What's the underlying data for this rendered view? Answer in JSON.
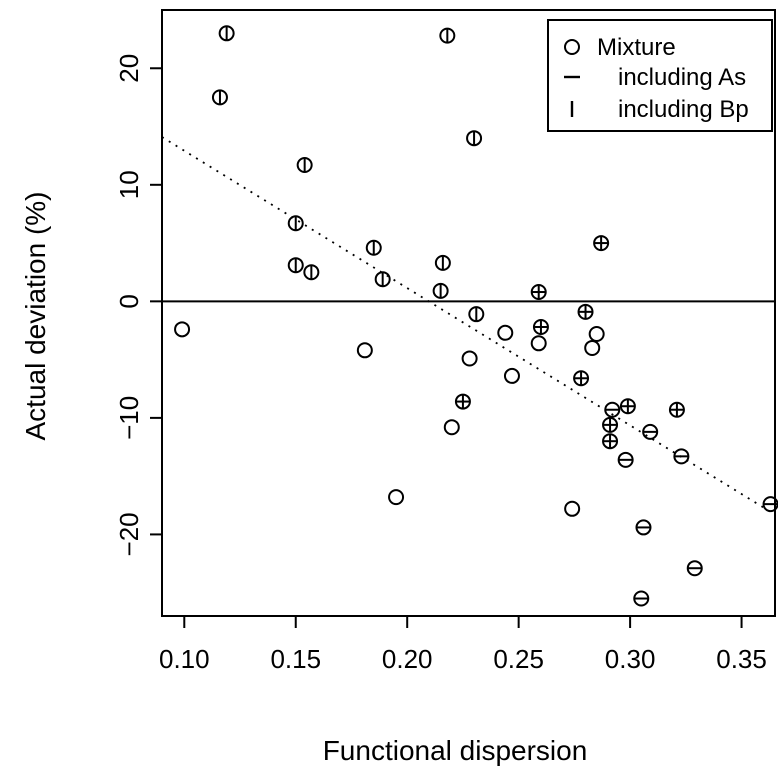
{
  "chart_data": {
    "type": "scatter",
    "xlabel": "Functional dispersion",
    "ylabel": "Actual deviation (%)",
    "xlim": [
      0.09,
      0.365
    ],
    "ylim": [
      -27,
      25
    ],
    "x_ticks": [
      "0.10",
      "0.15",
      "0.20",
      "0.25",
      "0.30",
      "0.35"
    ],
    "x_tick_values": [
      0.1,
      0.15,
      0.2,
      0.25,
      0.3,
      0.35
    ],
    "y_ticks": [
      "−20",
      "−10",
      "0",
      "10",
      "20"
    ],
    "y_tick_values": [
      -20,
      -10,
      0,
      10,
      20
    ],
    "reference_line": {
      "y": 0
    },
    "trend_line": {
      "style": "dotted",
      "x": [
        0.09,
        0.365
      ],
      "y": [
        14.1,
        -18.3
      ]
    },
    "legend": {
      "position": "top-right",
      "entries": [
        {
          "symbol": "circle",
          "label": "Mixture"
        },
        {
          "symbol": "dash",
          "label": "including As"
        },
        {
          "symbol": "bar",
          "label": "including Bp"
        }
      ]
    },
    "points": [
      {
        "x": 0.119,
        "y": 23.0,
        "mark": "bar"
      },
      {
        "x": 0.116,
        "y": 17.5,
        "mark": "bar"
      },
      {
        "x": 0.218,
        "y": 22.8,
        "mark": "bar"
      },
      {
        "x": 0.23,
        "y": 14.0,
        "mark": "bar"
      },
      {
        "x": 0.154,
        "y": 11.7,
        "mark": "bar"
      },
      {
        "x": 0.15,
        "y": 6.7,
        "mark": "bar"
      },
      {
        "x": 0.15,
        "y": 3.1,
        "mark": "bar"
      },
      {
        "x": 0.157,
        "y": 2.5,
        "mark": "bar"
      },
      {
        "x": 0.185,
        "y": 4.6,
        "mark": "bar"
      },
      {
        "x": 0.189,
        "y": 1.9,
        "mark": "bar"
      },
      {
        "x": 0.216,
        "y": 3.3,
        "mark": "bar"
      },
      {
        "x": 0.215,
        "y": 0.9,
        "mark": "bar"
      },
      {
        "x": 0.231,
        "y": -1.1,
        "mark": "bar"
      },
      {
        "x": 0.099,
        "y": -2.4,
        "mark": "none"
      },
      {
        "x": 0.181,
        "y": -4.2,
        "mark": "none"
      },
      {
        "x": 0.228,
        "y": -4.9,
        "mark": "none"
      },
      {
        "x": 0.22,
        "y": -10.8,
        "mark": "none"
      },
      {
        "x": 0.225,
        "y": -8.6,
        "mark": "plus"
      },
      {
        "x": 0.195,
        "y": -16.8,
        "mark": "none"
      },
      {
        "x": 0.244,
        "y": -2.7,
        "mark": "none"
      },
      {
        "x": 0.247,
        "y": -6.4,
        "mark": "none"
      },
      {
        "x": 0.259,
        "y": 0.8,
        "mark": "plus"
      },
      {
        "x": 0.26,
        "y": -2.2,
        "mark": "plus"
      },
      {
        "x": 0.259,
        "y": -3.6,
        "mark": "none"
      },
      {
        "x": 0.287,
        "y": 5.0,
        "mark": "plus"
      },
      {
        "x": 0.28,
        "y": -0.9,
        "mark": "plus"
      },
      {
        "x": 0.285,
        "y": -2.8,
        "mark": "none"
      },
      {
        "x": 0.283,
        "y": -4.0,
        "mark": "none"
      },
      {
        "x": 0.278,
        "y": -6.6,
        "mark": "plus"
      },
      {
        "x": 0.274,
        "y": -17.8,
        "mark": "none"
      },
      {
        "x": 0.292,
        "y": -9.3,
        "mark": "dash"
      },
      {
        "x": 0.299,
        "y": -9.0,
        "mark": "plus"
      },
      {
        "x": 0.291,
        "y": -10.6,
        "mark": "plus"
      },
      {
        "x": 0.291,
        "y": -12.0,
        "mark": "plus"
      },
      {
        "x": 0.298,
        "y": -13.6,
        "mark": "dash"
      },
      {
        "x": 0.309,
        "y": -11.2,
        "mark": "dash"
      },
      {
        "x": 0.321,
        "y": -9.3,
        "mark": "plus"
      },
      {
        "x": 0.323,
        "y": -13.3,
        "mark": "dash"
      },
      {
        "x": 0.306,
        "y": -19.4,
        "mark": "dash"
      },
      {
        "x": 0.305,
        "y": -25.5,
        "mark": "dash"
      },
      {
        "x": 0.329,
        "y": -22.9,
        "mark": "dash"
      },
      {
        "x": 0.363,
        "y": -17.4,
        "mark": "dash"
      }
    ]
  }
}
